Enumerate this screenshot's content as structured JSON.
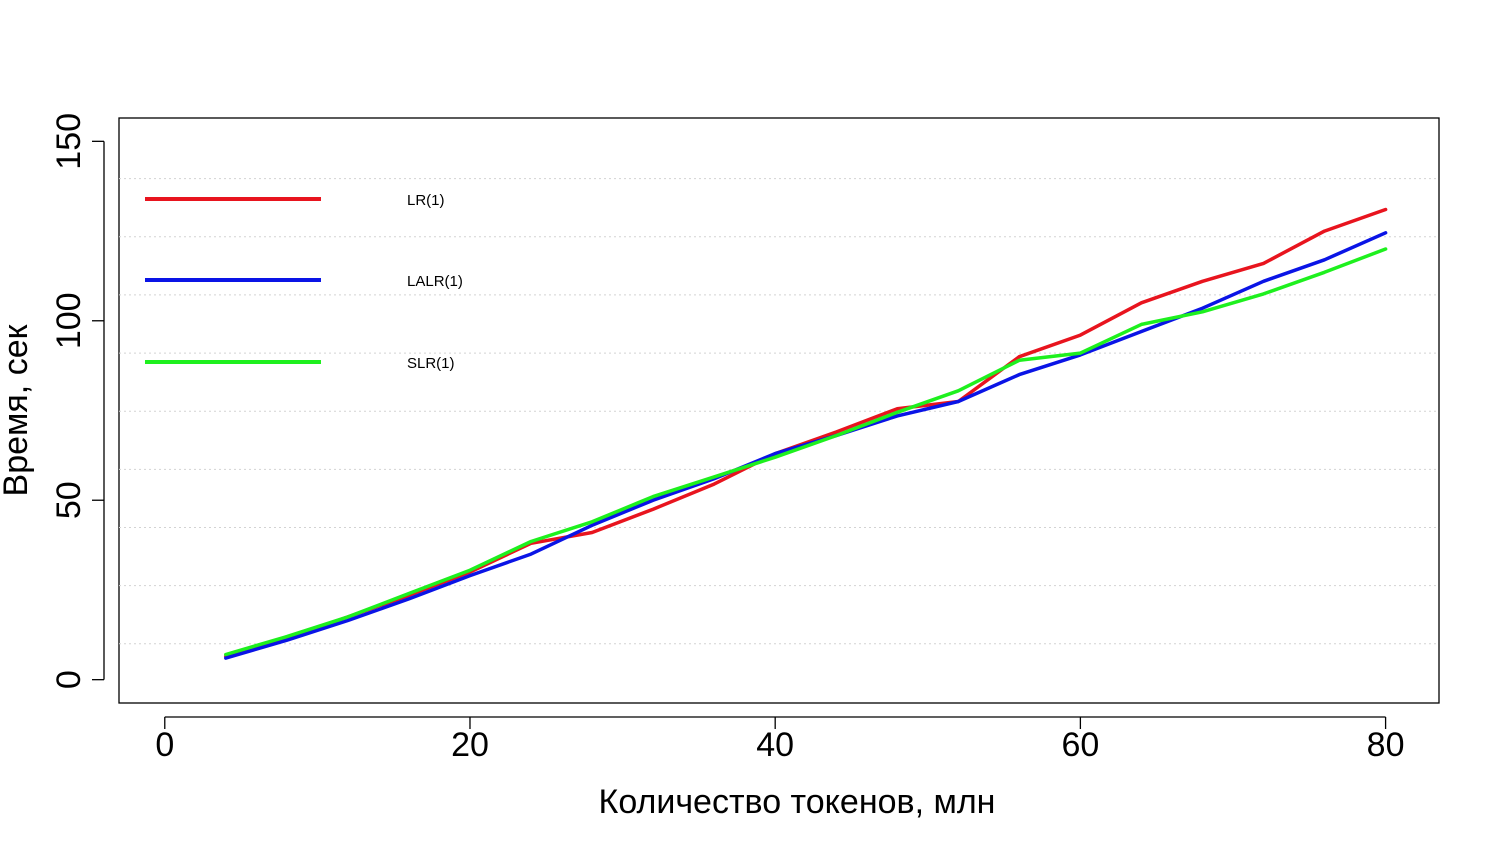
{
  "chart_data": {
    "type": "line",
    "xlabel": "Количество токенов, млн",
    "ylabel": "Время, сек",
    "xlim": [
      -3,
      83.5
    ],
    "ylim": [
      -6.5,
      156.5
    ],
    "x_ticks": [
      0,
      20,
      40,
      60,
      80
    ],
    "x_tick_labels": [
      "0",
      "20",
      "40",
      "60",
      "80"
    ],
    "y_ticks": [
      0,
      50,
      100,
      150
    ],
    "y_tick_labels": [
      "0",
      "50",
      "100",
      "150"
    ],
    "grid_y": [
      10,
      26.2,
      42.4,
      58.6,
      74.8,
      91,
      107.2,
      123.4,
      139.6
    ],
    "grid": "horizontal dotted",
    "legend": "top-left",
    "x": [
      4,
      8,
      12,
      16,
      20,
      24,
      28,
      32,
      36,
      40,
      44,
      48,
      52,
      56,
      60,
      64,
      68,
      72,
      76,
      80
    ],
    "series": [
      {
        "name": "LR(1)",
        "color": "#e8141e",
        "values": [
          6.5,
          11.5,
          17.5,
          23.5,
          30,
          38,
          41,
          47.5,
          54.5,
          63,
          69,
          75.5,
          77.5,
          90,
          96,
          105,
          111,
          116,
          125,
          131
        ]
      },
      {
        "name": "LALR(1)",
        "color": "#0a14e6",
        "values": [
          6,
          11,
          16.5,
          22.5,
          29,
          35,
          43,
          50,
          56,
          63,
          68,
          73.5,
          77.5,
          85,
          90.5,
          97,
          103.5,
          111,
          117,
          124.5
        ]
      },
      {
        "name": "SLR(1)",
        "color": "#1ef01e",
        "values": [
          7,
          12,
          17.5,
          24,
          30.5,
          38.5,
          44,
          51,
          56.5,
          62,
          68,
          74.5,
          80.5,
          89,
          91,
          99,
          102.5,
          107.5,
          113.5,
          120
        ]
      }
    ]
  }
}
